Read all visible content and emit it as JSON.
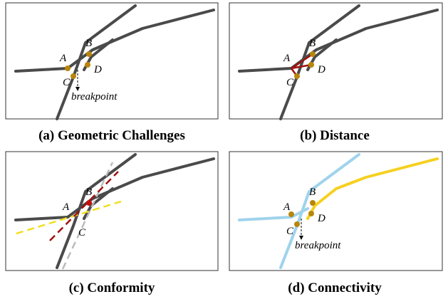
{
  "panels": [
    {
      "caption": "(a) Geometric Challenges",
      "labels": [
        "A",
        "B",
        "C",
        "D"
      ],
      "annotation": "breakpoint"
    },
    {
      "caption": "(b) Distance",
      "labels": [
        "A",
        "B",
        "C",
        "D"
      ]
    },
    {
      "caption": "(c) Conformity",
      "labels": [
        "A",
        "B",
        "C"
      ]
    },
    {
      "caption": "(d) Connectivity",
      "labels": [
        "A",
        "B",
        "C",
        "D"
      ],
      "annotation": "breakpoint"
    }
  ]
}
